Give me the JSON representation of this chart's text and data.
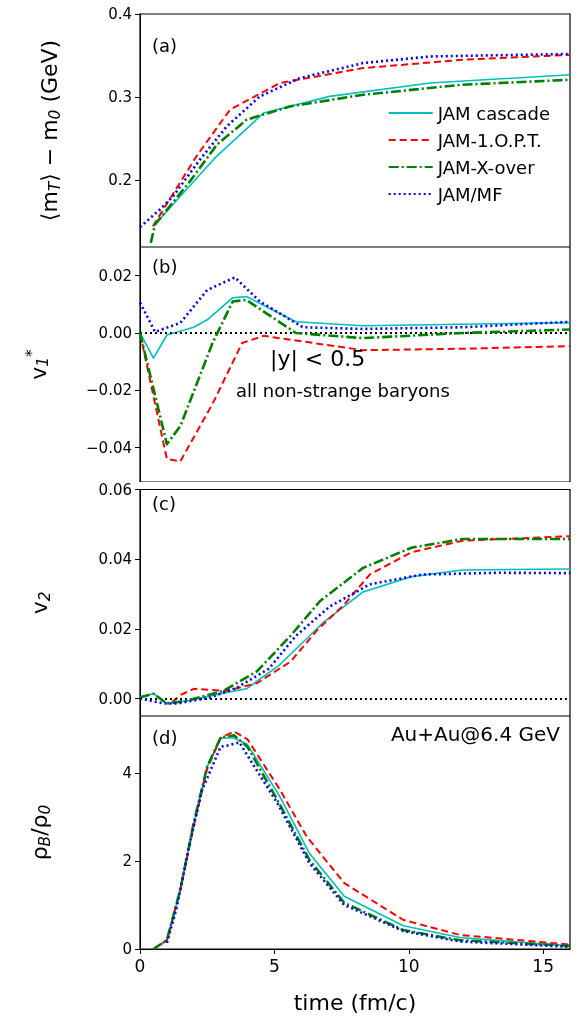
{
  "chart_data": [
    {
      "type": "line",
      "ylabel": "⟨m$_{T}$⟩ − m$_{0}$ (GeV)",
      "annotations": [
        "(a)"
      ],
      "xlim": [
        0,
        16
      ],
      "xticks": [
        0,
        5,
        10,
        15
      ],
      "ylim": [
        0.12,
        0.4
      ],
      "yticks": [
        0.2,
        0.3,
        0.4
      ],
      "tick_labels": "y",
      "grid": false,
      "legend": "bottom right",
      "marker": "none",
      "series": [
        {
          "name": "JAM cascade",
          "color": "#00bfbf",
          "line_style": "solid",
          "x": [
            0.5,
            1.5,
            2.85,
            4.6,
            7.06,
            10.8,
            16
          ],
          "values": [
            0.145,
            0.181,
            0.229,
            0.281,
            0.301,
            0.317,
            0.327
          ]
        },
        {
          "name": "JAM-1.O.P.T.",
          "color": "#ff0000",
          "line_style": "dashed",
          "x": [
            0.48,
            2.1,
            3.35,
            5.2,
            8.3,
            12,
            16
          ],
          "values": [
            0.145,
            0.229,
            0.285,
            0.317,
            0.335,
            0.345,
            0.351
          ]
        },
        {
          "name": "JAM-X-over",
          "color": "#008000",
          "line_style": "dashdot",
          "x": [
            0.4,
            0.56,
            1.86,
            2.86,
            3.97,
            5.6,
            8.3,
            12,
            16
          ],
          "values": [
            0.125,
            0.147,
            0.199,
            0.243,
            0.273,
            0.289,
            0.303,
            0.315,
            0.321
          ]
        },
        {
          "name": "JAM/MF",
          "color": "#0000ff",
          "line_style": "dotted",
          "x": [
            0,
            0.74,
            1.23,
            2.23,
            3.23,
            4.46,
            5.95,
            8.3,
            10.8,
            16
          ],
          "values": [
            0.144,
            0.165,
            0.181,
            0.225,
            0.265,
            0.301,
            0.323,
            0.341,
            0.349,
            0.352
          ]
        }
      ]
    },
    {
      "type": "line",
      "ylabel": "v$_{1}$$^{*}$",
      "annotations": [
        "(b)",
        "|y| < 0.5",
        "all non-strange baryons"
      ],
      "xlim": [
        0,
        16
      ],
      "xticks": [
        0,
        5,
        10,
        15
      ],
      "ylim": [
        -0.052,
        0.03
      ],
      "yticks": [
        {
          "value": -0.04,
          "label": "−0.04"
        },
        {
          "value": -0.02,
          "label": "−0.02"
        },
        {
          "value": 0,
          "label": "0.00"
        },
        0.02
      ],
      "tick_labels": "y",
      "grid": false,
      "marker": "none",
      "ref_lines": [
        {
          "axis": "y",
          "value": 0,
          "color": "#000000",
          "line_style": "dotted"
        }
      ],
      "series": [
        {
          "color": "#00bfbf",
          "line_style": "solid",
          "x": [
            0,
            0.5,
            1.0,
            2.0,
            2.5,
            3.45,
            3.96,
            5.8,
            8.3,
            16
          ],
          "values": [
            0,
            -0.0088,
            -0.0007,
            0.002,
            0.0046,
            0.0123,
            0.0127,
            0.0039,
            0.0025,
            0.0036
          ]
        },
        {
          "color": "#ff0000",
          "line_style": "dashed",
          "x": [
            0,
            1.0,
            1.5,
            2.7,
            3.8,
            4.6,
            8.3,
            12,
            16
          ],
          "values": [
            0,
            -0.044,
            -0.0448,
            -0.0247,
            -0.0035,
            -0.001,
            -0.006,
            -0.0055,
            -0.0046
          ]
        },
        {
          "color": "#008000",
          "line_style": "dashdot",
          "x": [
            0,
            1.0,
            1.5,
            2.7,
            3.45,
            3.96,
            5.8,
            8.3,
            12,
            16
          ],
          "values": [
            0,
            -0.0388,
            -0.0325,
            -0.0035,
            0.011,
            0.0115,
            0,
            -0.0018,
            0,
            0.0012
          ]
        },
        {
          "color": "#0000ff",
          "line_style": "dotted",
          "x": [
            0,
            0.56,
            1.5,
            2.5,
            3.53,
            4.46,
            6.06,
            8.3,
            12,
            16
          ],
          "values": [
            0.0106,
            0.0004,
            0.0035,
            0.015,
            0.0194,
            0.011,
            0.002,
            0.0014,
            0.002,
            0.0039
          ]
        }
      ]
    },
    {
      "type": "line",
      "ylabel": "v$_{2}$",
      "annotations": [
        "(c)"
      ],
      "xlim": [
        0,
        16
      ],
      "xticks": [
        0,
        5,
        10,
        15
      ],
      "ylim": [
        -0.005,
        0.06
      ],
      "yticks": [
        {
          "value": 0,
          "label": "0.00"
        },
        0.02,
        0.04,
        0.06
      ],
      "tick_labels": "y",
      "grid": false,
      "marker": "none",
      "ref_lines": [
        {
          "axis": "y",
          "value": 0,
          "color": "#000000",
          "line_style": "dotted"
        }
      ],
      "series": [
        {
          "color": "#00bfbf",
          "line_style": "solid",
          "x": [
            0,
            0.5,
            1.0,
            1.75,
            3.2,
            3.96,
            5.2,
            6.8,
            8.3,
            10.1,
            12,
            16
          ],
          "values": [
            0.0005,
            0.0014,
            -0.0014,
            -0.0006,
            0.0017,
            0.0028,
            0.0097,
            0.0217,
            0.0306,
            0.035,
            0.0369,
            0.0372
          ]
        },
        {
          "color": "#ff0000",
          "line_style": "dashed",
          "x": [
            1.2,
            1.5,
            2.0,
            3.2,
            4.35,
            5.6,
            6.6,
            7.6,
            8.55,
            10.1,
            12,
            16
          ],
          "values": [
            -0.001,
            0.001,
            0.0028,
            0.0022,
            0.0044,
            0.0106,
            0.0197,
            0.027,
            0.0356,
            0.042,
            0.0453,
            0.0466
          ]
        },
        {
          "color": "#008000",
          "line_style": "dashdot",
          "x": [
            0,
            0.5,
            1.0,
            1.75,
            3.1,
            4.35,
            5.6,
            6.7,
            8.3,
            10.1,
            12,
            16
          ],
          "values": [
            0.0003,
            0.0014,
            -0.0014,
            -0.0006,
            0.0022,
            0.0078,
            0.018,
            0.028,
            0.0375,
            0.0433,
            0.0458,
            0.0458
          ]
        },
        {
          "color": "#0000ff",
          "line_style": "dotted",
          "x": [
            0,
            0.9,
            1.4,
            2.6,
            3.6,
            4.8,
            5.8,
            7.06,
            8.55,
            10.5,
            13.3,
            16
          ],
          "values": [
            0,
            -0.0014,
            -0.0014,
            0.0003,
            0.0031,
            0.0086,
            0.018,
            0.0264,
            0.0328,
            0.0356,
            0.0361,
            0.036
          ]
        }
      ]
    },
    {
      "type": "line",
      "xlabel": "time (fm/c)",
      "ylabel": "ρ$_{B}$/ρ$_{0}$",
      "annotations": [
        "(d)",
        "Au+Au@6.4 GeV"
      ],
      "xlim": [
        0,
        16
      ],
      "xticks": [
        0,
        5,
        10,
        15
      ],
      "ylim": [
        0,
        5.3
      ],
      "yticks": [
        0,
        2,
        4
      ],
      "grid": false,
      "marker": "none",
      "series": [
        {
          "color": "#00bfbf",
          "line_style": "solid",
          "x": [
            0.5,
            1.0,
            1.5,
            2.0,
            2.5,
            3.0,
            3.5,
            4.0,
            5.2,
            6.3,
            7.6,
            9.8,
            11.9,
            16
          ],
          "values": [
            0,
            0.2,
            1.35,
            2.85,
            4.15,
            4.8,
            4.8,
            4.65,
            3.47,
            2.18,
            1.2,
            0.53,
            0.26,
            0.07
          ]
        },
        {
          "color": "#ff0000",
          "line_style": "dashed",
          "x": [
            0.5,
            1.0,
            1.5,
            2.0,
            2.5,
            3.0,
            3.5,
            4.0,
            5.2,
            6.2,
            7.6,
            9.8,
            11.9,
            16
          ],
          "values": [
            0,
            0.2,
            1.35,
            2.8,
            4.1,
            4.8,
            4.95,
            4.77,
            3.63,
            2.56,
            1.5,
            0.66,
            0.32,
            0.1
          ]
        },
        {
          "color": "#008000",
          "line_style": "dashdot",
          "x": [
            0.5,
            1.0,
            1.5,
            2.0,
            2.5,
            3.0,
            3.5,
            4.0,
            5.1,
            6.3,
            7.6,
            9.8,
            11.9,
            16
          ],
          "values": [
            0,
            0.2,
            1.35,
            2.87,
            4.15,
            4.81,
            4.86,
            4.6,
            3.4,
            2.03,
            1.05,
            0.43,
            0.2,
            0.07
          ]
        },
        {
          "color": "#0000ff",
          "line_style": "dotted",
          "x": [
            1.0,
            1.35,
            1.85,
            2.3,
            3.0,
            3.35,
            3.7,
            4.1,
            5.1,
            6.3,
            7.6,
            9.8,
            11.9,
            16
          ],
          "values": [
            0.14,
            0.9,
            2.4,
            3.6,
            4.6,
            4.64,
            4.7,
            4.3,
            3.33,
            1.96,
            1.0,
            0.41,
            0.17,
            0.05
          ]
        }
      ]
    }
  ]
}
